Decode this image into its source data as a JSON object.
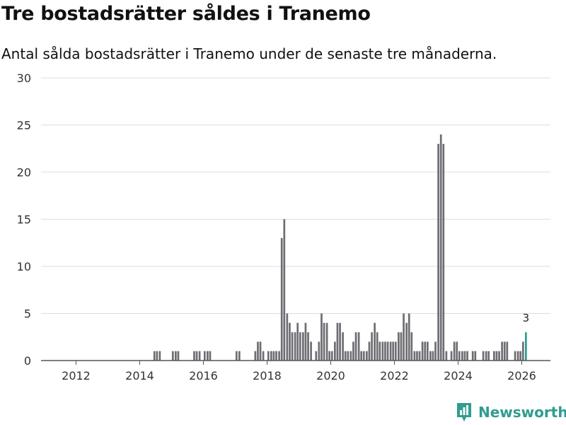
{
  "title": "Tre bostadsrätter såldes i Tranemo",
  "subtitle": "Antal sålda bostadsrätter i Tranemo under de senaste tre månaderna.",
  "brand": "Newsworthy",
  "colors": {
    "bar": "#6e6d73",
    "highlight": "#2a9d8f",
    "grid": "#dddddd",
    "brand": "#2f9c8f"
  },
  "chart_data": {
    "type": "bar",
    "title": "Tre bostadsrätter såldes i Tranemo",
    "subtitle": "Antal sålda bostadsrätter i Tranemo under de senaste tre månaderna.",
    "xlabel": "",
    "ylabel": "",
    "ylim": [
      0,
      30
    ],
    "yticks": [
      0,
      5,
      10,
      15,
      20,
      25,
      30
    ],
    "xlim": [
      2010.9,
      2026.9
    ],
    "xticks": [
      2012,
      2014,
      2016,
      2018,
      2020,
      2022,
      2024,
      2026
    ],
    "grid": true,
    "bar_width_years": 0.0667,
    "series": [
      {
        "name": "Antal sålda bostadsrätter",
        "points": [
          [
            2014.46,
            1
          ],
          [
            2014.54,
            1
          ],
          [
            2014.63,
            1
          ],
          [
            2015.04,
            1
          ],
          [
            2015.13,
            1
          ],
          [
            2015.21,
            1
          ],
          [
            2015.71,
            1
          ],
          [
            2015.79,
            1
          ],
          [
            2015.88,
            1
          ],
          [
            2016.04,
            1
          ],
          [
            2016.13,
            1
          ],
          [
            2016.21,
            1
          ],
          [
            2017.04,
            1
          ],
          [
            2017.13,
            1
          ],
          [
            2017.63,
            1
          ],
          [
            2017.71,
            2
          ],
          [
            2017.79,
            2
          ],
          [
            2017.88,
            1
          ],
          [
            2018.04,
            1
          ],
          [
            2018.13,
            1
          ],
          [
            2018.21,
            1
          ],
          [
            2018.29,
            1
          ],
          [
            2018.38,
            1
          ],
          [
            2018.46,
            13
          ],
          [
            2018.54,
            15
          ],
          [
            2018.63,
            5
          ],
          [
            2018.71,
            4
          ],
          [
            2018.79,
            3
          ],
          [
            2018.88,
            3
          ],
          [
            2018.96,
            4
          ],
          [
            2019.04,
            3
          ],
          [
            2019.13,
            3
          ],
          [
            2019.21,
            4
          ],
          [
            2019.29,
            3
          ],
          [
            2019.38,
            2
          ],
          [
            2019.46,
            0
          ],
          [
            2019.54,
            1
          ],
          [
            2019.63,
            2
          ],
          [
            2019.71,
            5
          ],
          [
            2019.79,
            4
          ],
          [
            2019.88,
            4
          ],
          [
            2019.96,
            1
          ],
          [
            2020.04,
            1
          ],
          [
            2020.13,
            2
          ],
          [
            2020.21,
            4
          ],
          [
            2020.29,
            4
          ],
          [
            2020.38,
            3
          ],
          [
            2020.46,
            1
          ],
          [
            2020.54,
            1
          ],
          [
            2020.63,
            1
          ],
          [
            2020.71,
            2
          ],
          [
            2020.79,
            3
          ],
          [
            2020.88,
            3
          ],
          [
            2020.96,
            1
          ],
          [
            2021.04,
            1
          ],
          [
            2021.13,
            1
          ],
          [
            2021.21,
            2
          ],
          [
            2021.29,
            3
          ],
          [
            2021.38,
            4
          ],
          [
            2021.46,
            3
          ],
          [
            2021.54,
            2
          ],
          [
            2021.63,
            2
          ],
          [
            2021.71,
            2
          ],
          [
            2021.79,
            2
          ],
          [
            2021.88,
            2
          ],
          [
            2021.96,
            2
          ],
          [
            2022.04,
            2
          ],
          [
            2022.13,
            3
          ],
          [
            2022.21,
            3
          ],
          [
            2022.29,
            5
          ],
          [
            2022.38,
            4
          ],
          [
            2022.46,
            5
          ],
          [
            2022.54,
            3
          ],
          [
            2022.63,
            1
          ],
          [
            2022.71,
            1
          ],
          [
            2022.79,
            1
          ],
          [
            2022.88,
            2
          ],
          [
            2022.96,
            2
          ],
          [
            2023.04,
            2
          ],
          [
            2023.13,
            1
          ],
          [
            2023.21,
            1
          ],
          [
            2023.29,
            2
          ],
          [
            2023.38,
            23
          ],
          [
            2023.46,
            24
          ],
          [
            2023.54,
            23
          ],
          [
            2023.63,
            1
          ],
          [
            2023.79,
            1
          ],
          [
            2023.88,
            2
          ],
          [
            2023.96,
            2
          ],
          [
            2024.04,
            1
          ],
          [
            2024.13,
            1
          ],
          [
            2024.21,
            1
          ],
          [
            2024.29,
            1
          ],
          [
            2024.46,
            1
          ],
          [
            2024.54,
            1
          ],
          [
            2024.79,
            1
          ],
          [
            2024.88,
            1
          ],
          [
            2024.96,
            1
          ],
          [
            2025.13,
            1
          ],
          [
            2025.21,
            1
          ],
          [
            2025.29,
            1
          ],
          [
            2025.38,
            2
          ],
          [
            2025.46,
            2
          ],
          [
            2025.54,
            2
          ],
          [
            2025.79,
            1
          ],
          [
            2025.88,
            1
          ],
          [
            2025.96,
            1
          ],
          [
            2026.04,
            2
          ]
        ]
      }
    ],
    "highlight": {
      "x": 2026.13,
      "value": 3,
      "label": "3"
    }
  }
}
